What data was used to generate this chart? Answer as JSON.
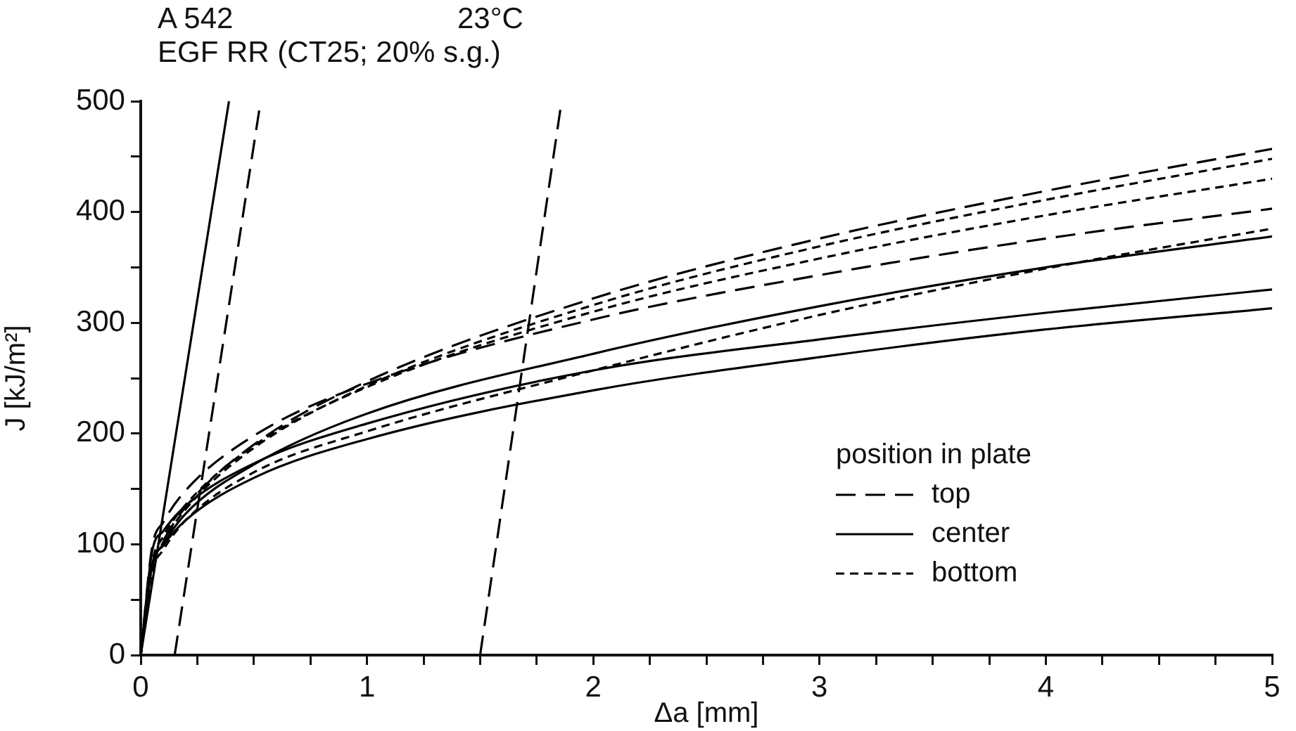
{
  "chart_data": {
    "type": "line",
    "title": "A 542",
    "subtitle": "EGF RR (CT25; 20% s.g.)",
    "annotations": [
      "23°C"
    ],
    "xlabel": "Δa [mm]",
    "ylabel": "J [kJ/m²]",
    "legend_title": "position in plate",
    "legend": "bottom right",
    "grid": false,
    "marker": "none",
    "xlim": [
      0,
      5
    ],
    "ylim": [
      0,
      500
    ],
    "xticks": [
      0,
      {
        "value": 0.25,
        "label": null
      },
      {
        "value": 0.5,
        "label": null
      },
      {
        "value": 0.75,
        "label": null
      },
      1,
      {
        "value": 1.25,
        "label": null
      },
      {
        "value": 1.5,
        "label": null
      },
      {
        "value": 1.75,
        "label": null
      },
      2,
      {
        "value": 2.25,
        "label": null
      },
      {
        "value": 2.5,
        "label": null
      },
      {
        "value": 2.75,
        "label": null
      },
      3,
      {
        "value": 3.25,
        "label": null
      },
      {
        "value": 3.5,
        "label": null
      },
      {
        "value": 3.75,
        "label": null
      },
      4,
      {
        "value": 4.25,
        "label": null
      },
      {
        "value": 4.5,
        "label": null
      },
      {
        "value": 4.75,
        "label": null
      },
      5
    ],
    "yticks": [
      0,
      {
        "value": 50,
        "label": null
      },
      100,
      {
        "value": 150,
        "label": null
      },
      200,
      {
        "value": 250,
        "label": null
      },
      300,
      {
        "value": 350,
        "label": null
      },
      400,
      {
        "value": 450,
        "label": null
      },
      500
    ],
    "x": [
      0,
      0.05,
      0.1,
      0.2,
      0.5,
      1,
      2,
      3,
      4,
      5
    ],
    "series": [
      {
        "name": "top",
        "color": "#000000",
        "line_style": "dashed",
        "values": [
          0,
          79,
          103,
          134,
          190,
          247,
          322,
          376,
          419,
          457
        ]
      },
      {
        "color": "#000000",
        "line_style": "dashed",
        "values": [
          0,
          97,
          120,
          149,
          198,
          245,
          303,
          343,
          376,
          403
        ]
      },
      {
        "name": "center",
        "color": "#000000",
        "line_style": "solid",
        "values": [
          0,
          80,
          100,
          128,
          172,
          218,
          272,
          315,
          350,
          378
        ]
      },
      {
        "color": "#000000",
        "line_style": "solid",
        "values": [
          0,
          93,
          112,
          135,
          173,
          209,
          257,
          285,
          309,
          330
        ]
      },
      {
        "color": "#000000",
        "line_style": "solid",
        "values": [
          0,
          81,
          99,
          122,
          160,
          195,
          239,
          269,
          294,
          313
        ]
      },
      {
        "name": "bottom",
        "color": "#000000",
        "line_style": "dotted",
        "values": [
          0,
          78,
          102,
          132,
          187,
          243,
          316,
          369,
          411,
          448
        ]
      },
      {
        "color": "#000000",
        "line_style": "dotted",
        "values": [
          0,
          83,
          107,
          136,
          189,
          242,
          310,
          358,
          397,
          430
        ]
      },
      {
        "color": "#000000",
        "line_style": "dotted",
        "values": [
          0,
          75,
          95,
          122,
          165,
          202,
          257,
          307,
          349,
          385
        ]
      },
      {
        "color": "#000000",
        "line_style": "solid",
        "x": [
          0,
          0.39
        ],
        "values": [
          0,
          500
        ]
      },
      {
        "color": "#000000",
        "line_style": "dashed",
        "x": [
          0.15,
          0.53
        ],
        "values": [
          0,
          500
        ]
      },
      {
        "color": "#000000",
        "line_style": "dashed",
        "x": [
          1.5,
          1.86
        ],
        "values": [
          0,
          500
        ]
      }
    ]
  }
}
